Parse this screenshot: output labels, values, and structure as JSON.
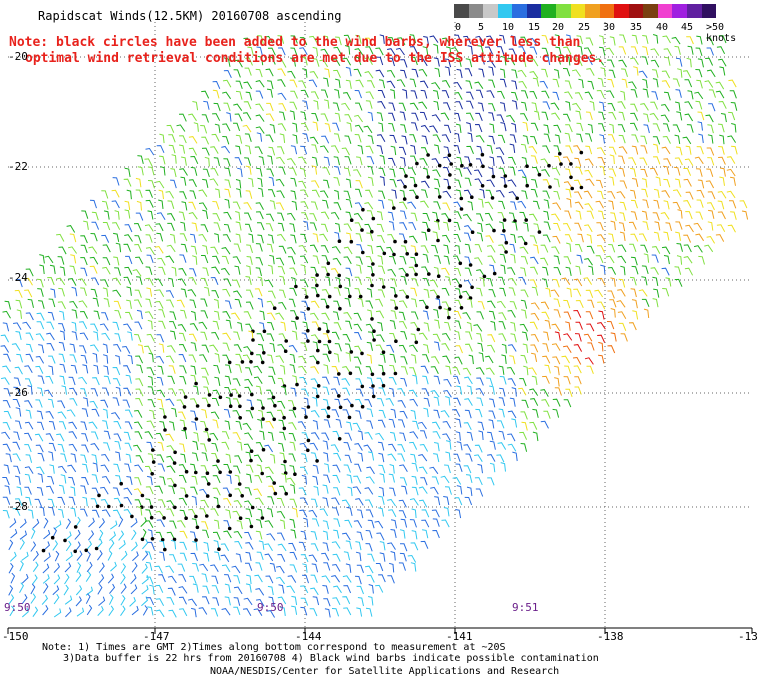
{
  "title": "Rapidscat Winds(12.5KM) 20160708 ascending",
  "note_line1": "Note: black circles have been added to the wind barbs, wherever less than",
  "note_line2": "optimal wind retrieval conditions are met due to the ISS attitude changes.",
  "legend": {
    "labels": [
      "0",
      "5",
      "10",
      "15",
      "20",
      "25",
      "30",
      "35",
      "40",
      "45",
      ">50 knots"
    ],
    "colors": [
      "#4a4a4a",
      "#8a8a8a",
      "#c8c8c8",
      "#32c8f0",
      "#2a6ee0",
      "#1a2ea0",
      "#20b020",
      "#80e040",
      "#f0e020",
      "#f0a020",
      "#f07010",
      "#e01010",
      "#a01010",
      "#7a4010",
      "#f040d0",
      "#a020e0",
      "#6020a0",
      "#301060"
    ]
  },
  "axes": {
    "lat_labels": [
      "-20",
      "-22",
      "-24",
      "-26",
      "-28"
    ],
    "lon_labels": [
      "-150",
      "-147",
      "-144",
      "-141",
      "-138",
      "-13"
    ]
  },
  "times": [
    "9:50",
    "9:50",
    "9:51"
  ],
  "footer": {
    "line1": "Note: 1) Times are GMT 2)Times along bottom correspond to measurement at ~20S",
    "line2": "3)Data buffer is 22 hrs from 20160708 4) Black wind barbs indicate possible contamination",
    "line3": "NOAA/NESDIS/Center for Satellite Applications and Research"
  }
}
